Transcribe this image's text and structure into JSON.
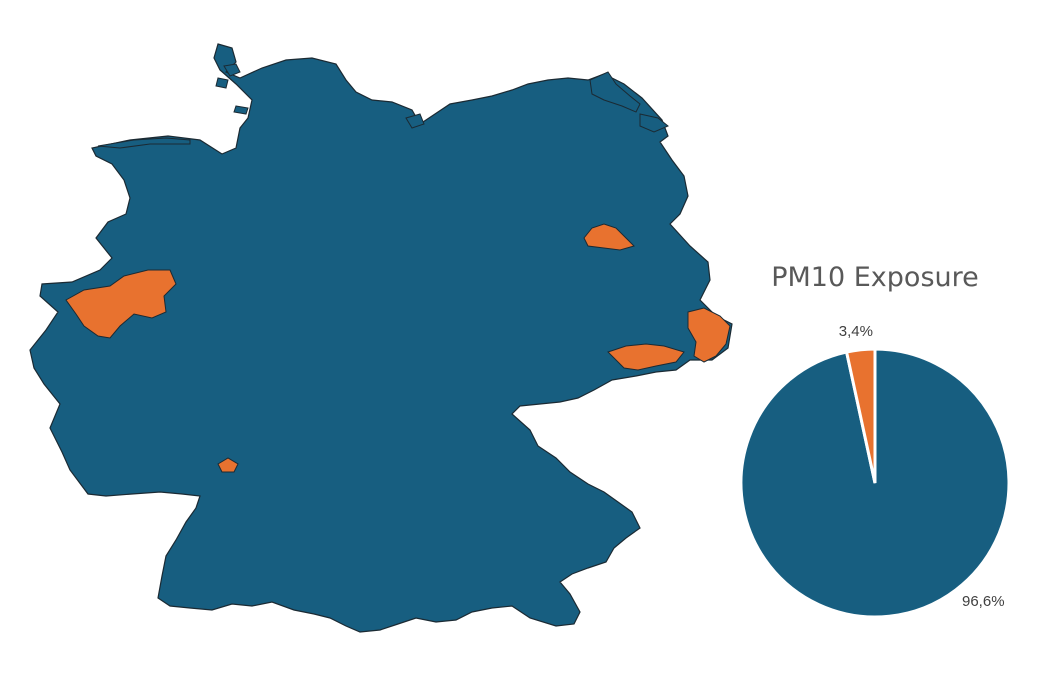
{
  "colors": {
    "region_default": "#175e80",
    "region_highlight": "#e8722f",
    "border": "#1b2a33",
    "slice_separator": "#ffffff"
  },
  "map": {
    "legend": "none",
    "highlighted_regions": 6
  },
  "chart_data": {
    "type": "pie",
    "title": "PM10 Exposure",
    "categories": [
      "",
      ""
    ],
    "values": [
      3.4,
      96.6
    ],
    "labels": [
      "3,4%",
      "96,6%"
    ],
    "colors": [
      "#e8722f",
      "#175e80"
    ],
    "legend": "none",
    "start_angle_deg": 0,
    "direction": "counterclockwise-from-top for small slice"
  }
}
